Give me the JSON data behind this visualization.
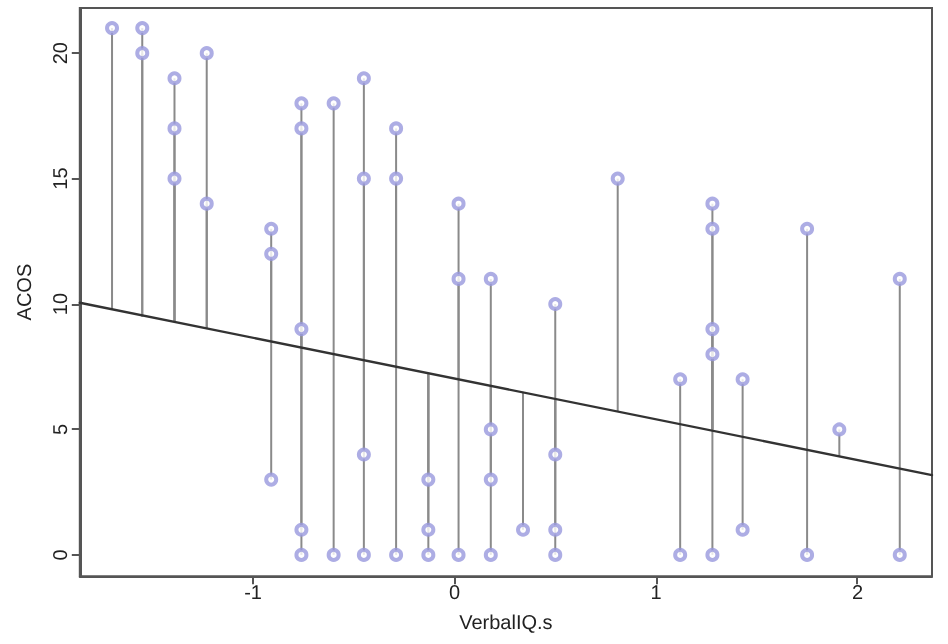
{
  "chart_data": {
    "type": "scatter",
    "xlabel": "VerbalIQ.s",
    "ylabel": "ACOS",
    "xlim": [
      -1.86,
      2.37
    ],
    "ylim": [
      -0.85,
      21.8
    ],
    "xticks": [
      -1,
      0,
      1,
      2
    ],
    "yticks": [
      0,
      5,
      10,
      15,
      20
    ],
    "series": [
      {
        "color": "#9999dd",
        "marker": "circle",
        "x": [
          -1.7,
          -1.55,
          -1.55,
          -1.39,
          -1.39,
          -1.39,
          -1.23,
          -1.23,
          -0.91,
          -0.91,
          -0.91,
          -0.76,
          -0.76,
          -0.76,
          -0.76,
          -0.76,
          -0.6,
          -0.6,
          -0.45,
          -0.45,
          -0.45,
          -0.45,
          -0.29,
          -0.29,
          -0.29,
          -0.13,
          -0.13,
          -0.13,
          0.02,
          0.02,
          0.02,
          0.18,
          0.18,
          0.18,
          0.18,
          0.34,
          0.5,
          0.5,
          0.5,
          0.5,
          0.81,
          1.12,
          1.12,
          1.28,
          1.28,
          1.28,
          1.28,
          1.28,
          1.43,
          1.43,
          1.75,
          1.75,
          1.91,
          2.21,
          2.21
        ],
        "values": [
          21,
          21,
          20,
          19,
          17,
          15,
          20,
          14,
          13,
          12,
          3,
          18,
          17,
          9,
          1,
          0,
          18,
          0,
          19,
          15,
          4,
          0,
          17,
          15,
          0,
          3,
          1,
          0,
          14,
          11,
          0,
          11,
          5,
          3,
          0,
          1,
          10,
          4,
          1,
          0,
          15,
          7,
          0,
          14,
          13,
          9,
          8,
          0,
          7,
          1,
          13,
          0,
          5,
          11,
          0
        ],
        "errors": [
          [
            9.8,
            21
          ],
          [
            9.5,
            21
          ],
          [
            9.5,
            20
          ],
          [
            9.3,
            19
          ],
          [
            9.3,
            17
          ],
          [
            9.3,
            15
          ],
          [
            9.0,
            20
          ],
          [
            9.0,
            14
          ],
          [
            8.5,
            13
          ],
          [
            8.5,
            12
          ],
          [
            3,
            8.5
          ],
          [
            8.3,
            18
          ],
          [
            8.3,
            17
          ],
          [
            8.3,
            9
          ],
          [
            1,
            8.3
          ],
          [
            0,
            8.3
          ],
          [
            8.0,
            18
          ],
          [
            0,
            8.0
          ],
          [
            7.8,
            19
          ],
          [
            7.8,
            15
          ],
          [
            4,
            7.8
          ],
          [
            0,
            7.8
          ],
          [
            7.5,
            17
          ],
          [
            7.5,
            15
          ],
          [
            0,
            7.5
          ],
          [
            3,
            7.2
          ],
          [
            1,
            7.2
          ],
          [
            0,
            7.2
          ],
          [
            7.0,
            14
          ],
          [
            7.0,
            11
          ],
          [
            0,
            7.0
          ],
          [
            6.7,
            11
          ],
          [
            5,
            6.7
          ],
          [
            3,
            6.7
          ],
          [
            0,
            6.7
          ],
          [
            1,
            6.5
          ],
          [
            6.2,
            10
          ],
          [
            4,
            6.2
          ],
          [
            1,
            6.2
          ],
          [
            0,
            6.2
          ],
          [
            5.7,
            15
          ],
          [
            5.2,
            7
          ],
          [
            0,
            5.2
          ],
          [
            5.0,
            14
          ],
          [
            5.0,
            13
          ],
          [
            5.0,
            9
          ],
          [
            5.0,
            8
          ],
          [
            0,
            5.0
          ],
          [
            4.7,
            7
          ],
          [
            1,
            4.7
          ],
          [
            4.2,
            13
          ],
          [
            0,
            4.2
          ],
          [
            3.9,
            5
          ],
          [
            3.4,
            11
          ],
          [
            0,
            3.4
          ]
        ]
      },
      {
        "type": "line",
        "color": "#333333",
        "marker": "none",
        "x": [
          -1.86,
          2.37
        ],
        "values": [
          10.05,
          3.18
        ]
      }
    ]
  }
}
